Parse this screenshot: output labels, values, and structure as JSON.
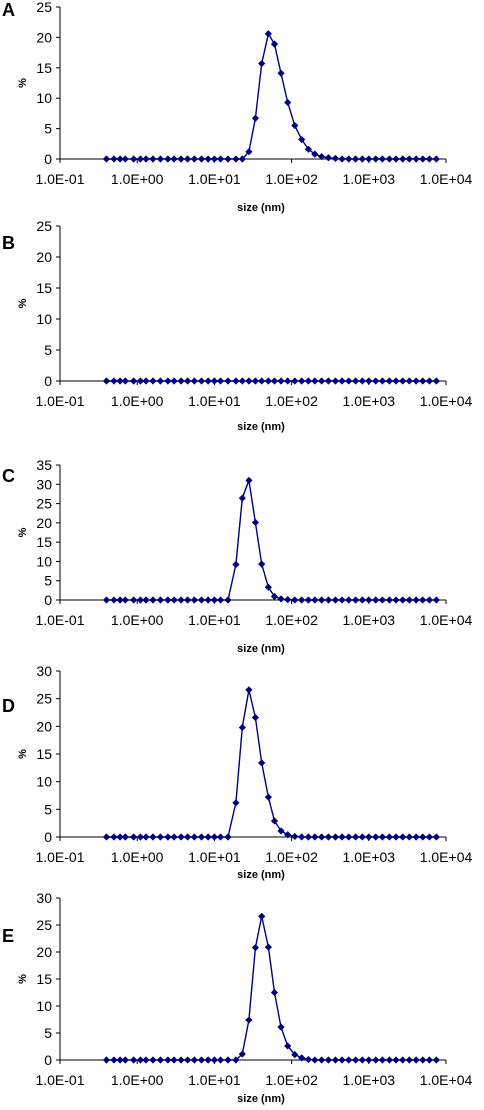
{
  "chart_data": [
    {
      "type": "scatter",
      "panel_label": "A",
      "xlabel": "size (nm)",
      "ylabel": "%",
      "x_scale": "log",
      "xlim": [
        0.1,
        10000
      ],
      "ylim": [
        0,
        25
      ],
      "x_ticks": [
        "1.0E-01",
        "1.0E+00",
        "1.0E+01",
        "1.0E+02",
        "1.0E+03",
        "1.0E+04"
      ],
      "y_ticks": [
        "0",
        "5",
        "10",
        "15",
        "20",
        "25"
      ],
      "grid": false,
      "marker": "diamond",
      "color": "#00007f",
      "series": [
        {
          "x": [
            0.4,
            0.5,
            0.6,
            0.7,
            0.9,
            1.1,
            1.3,
            1.6,
            2,
            2.5,
            3,
            3.7,
            4.5,
            5.5,
            6.8,
            8.3,
            10,
            12,
            15,
            19,
            23,
            28,
            34,
            41,
            50,
            60,
            73,
            89,
            110,
            135,
            165,
            200,
            245,
            300,
            370,
            450,
            550,
            675,
            825,
            1000,
            1230,
            1500,
            1850,
            2250,
            2750,
            3350,
            4100,
            5000,
            6100,
            7500
          ],
          "y": [
            0,
            0,
            0,
            0,
            0,
            0,
            0,
            0,
            0,
            0,
            0,
            0,
            0,
            0,
            0,
            0,
            0,
            0,
            0,
            0,
            0,
            1.2,
            6.7,
            15.7,
            20.6,
            18.9,
            14.1,
            9.3,
            5.5,
            3.2,
            1.6,
            0.8,
            0.4,
            0.2,
            0.1,
            0,
            0,
            0,
            0,
            0,
            0,
            0,
            0,
            0,
            0,
            0,
            0,
            0,
            0,
            0
          ]
        }
      ]
    },
    {
      "type": "scatter",
      "panel_label": "B",
      "xlabel": "size (nm)",
      "ylabel": "%",
      "x_scale": "log",
      "xlim": [
        0.1,
        10000
      ],
      "ylim": [
        0,
        25
      ],
      "x_ticks": [
        "1.0E-01",
        "1.0E+00",
        "1.0E+01",
        "1.0E+02",
        "1.0E+03",
        "1.0E+04"
      ],
      "y_ticks": [
        "0",
        "5",
        "10",
        "15",
        "20",
        "25"
      ],
      "grid": false,
      "marker": "diamond",
      "color": "#00007f",
      "series": [
        {
          "x": [
            0.4,
            0.5,
            0.6,
            0.7,
            0.9,
            1.1,
            1.3,
            1.6,
            2,
            2.5,
            3,
            3.7,
            4.5,
            5.5,
            6.8,
            8.3,
            10,
            12,
            15,
            19,
            23,
            28,
            34,
            41,
            50,
            60,
            73,
            89,
            110,
            135,
            165,
            200,
            245,
            300,
            370,
            450,
            550,
            675,
            825,
            1000,
            1230,
            1500,
            1850,
            2250,
            2750,
            3350,
            4100,
            5000,
            6100,
            7500
          ],
          "y": [
            0,
            0,
            0,
            0,
            0,
            0,
            0,
            0,
            0,
            0,
            0,
            0,
            0,
            0,
            0,
            0,
            0,
            0,
            0,
            0,
            0,
            0,
            0,
            0,
            0,
            0,
            0,
            0,
            0,
            0,
            0,
            0,
            0,
            0,
            0,
            0,
            0,
            0,
            0,
            0,
            0,
            0,
            0,
            0,
            0,
            0,
            0,
            0,
            0,
            0
          ]
        }
      ]
    },
    {
      "type": "scatter",
      "panel_label": "C",
      "xlabel": "size (nm)",
      "ylabel": "%",
      "x_scale": "log",
      "xlim": [
        0.1,
        10000
      ],
      "ylim": [
        0,
        35
      ],
      "x_ticks": [
        "1.0E-01",
        "1.0E+00",
        "1.0E+01",
        "1.0E+02",
        "1.0E+03",
        "1.0E+04"
      ],
      "y_ticks": [
        "0",
        "5",
        "10",
        "15",
        "20",
        "25",
        "30",
        "35"
      ],
      "grid": false,
      "marker": "diamond",
      "color": "#00007f",
      "series": [
        {
          "x": [
            0.4,
            0.5,
            0.6,
            0.7,
            0.9,
            1.1,
            1.3,
            1.6,
            2,
            2.5,
            3,
            3.7,
            4.5,
            5.5,
            6.8,
            8.3,
            10,
            12,
            15,
            19,
            23,
            28,
            34,
            41,
            50,
            60,
            73,
            89,
            110,
            135,
            165,
            200,
            245,
            300,
            370,
            450,
            550,
            675,
            825,
            1000,
            1230,
            1500,
            1850,
            2250,
            2750,
            3350,
            4100,
            5000,
            6100,
            7500
          ],
          "y": [
            0,
            0,
            0,
            0,
            0,
            0,
            0,
            0,
            0,
            0,
            0,
            0,
            0,
            0,
            0,
            0,
            0,
            0,
            0,
            9.2,
            26.4,
            31.0,
            20.1,
            9.3,
            3.3,
            0.9,
            0.3,
            0.1,
            0,
            0,
            0,
            0,
            0,
            0,
            0,
            0,
            0,
            0,
            0,
            0,
            0,
            0,
            0,
            0,
            0,
            0,
            0,
            0,
            0,
            0
          ]
        }
      ]
    },
    {
      "type": "scatter",
      "panel_label": "D",
      "xlabel": "size (nm)",
      "ylabel": "%",
      "x_scale": "log",
      "xlim": [
        0.1,
        10000
      ],
      "ylim": [
        0,
        30
      ],
      "x_ticks": [
        "1.0E-01",
        "1.0E+00",
        "1.0E+01",
        "1.0E+02",
        "1.0E+03",
        "1.0E+04"
      ],
      "y_ticks": [
        "0",
        "5",
        "10",
        "15",
        "20",
        "25",
        "30"
      ],
      "grid": false,
      "marker": "diamond",
      "color": "#00007f",
      "series": [
        {
          "x": [
            0.4,
            0.5,
            0.6,
            0.7,
            0.9,
            1.1,
            1.3,
            1.6,
            2,
            2.5,
            3,
            3.7,
            4.5,
            5.5,
            6.8,
            8.3,
            10,
            12,
            15,
            19,
            23,
            28,
            34,
            41,
            50,
            60,
            73,
            89,
            110,
            135,
            165,
            200,
            245,
            300,
            370,
            450,
            550,
            675,
            825,
            1000,
            1230,
            1500,
            1850,
            2250,
            2750,
            3350,
            4100,
            5000,
            6100,
            7500
          ],
          "y": [
            0,
            0,
            0,
            0,
            0,
            0,
            0,
            0,
            0,
            0,
            0,
            0,
            0,
            0,
            0,
            0,
            0,
            0,
            0,
            6.2,
            19.8,
            26.6,
            21.6,
            13.4,
            7.2,
            2.9,
            1.1,
            0.4,
            0.1,
            0,
            0,
            0,
            0,
            0,
            0,
            0,
            0,
            0,
            0,
            0,
            0,
            0,
            0,
            0,
            0,
            0,
            0,
            0,
            0,
            0
          ]
        }
      ]
    },
    {
      "type": "scatter",
      "panel_label": "E",
      "xlabel": "size (nm)",
      "ylabel": "%",
      "x_scale": "log",
      "xlim": [
        0.1,
        10000
      ],
      "ylim": [
        0,
        30
      ],
      "x_ticks": [
        "1.0E-01",
        "1.0E+00",
        "1.0E+01",
        "1.0E+02",
        "1.0E+03",
        "1.0E+04"
      ],
      "y_ticks": [
        "0",
        "5",
        "10",
        "15",
        "20",
        "25",
        "30"
      ],
      "grid": false,
      "marker": "diamond",
      "color": "#00007f",
      "series": [
        {
          "x": [
            0.4,
            0.5,
            0.6,
            0.7,
            0.9,
            1.1,
            1.3,
            1.6,
            2,
            2.5,
            3,
            3.7,
            4.5,
            5.5,
            6.8,
            8.3,
            10,
            12,
            15,
            19,
            23,
            28,
            34,
            41,
            50,
            60,
            73,
            89,
            110,
            135,
            165,
            200,
            245,
            300,
            370,
            450,
            550,
            675,
            825,
            1000,
            1230,
            1500,
            1850,
            2250,
            2750,
            3350,
            4100,
            5000,
            6100,
            7500
          ],
          "y": [
            0,
            0,
            0,
            0,
            0,
            0,
            0,
            0,
            0,
            0,
            0,
            0,
            0,
            0,
            0,
            0,
            0,
            0,
            0,
            0,
            1.1,
            7.4,
            20.8,
            26.6,
            20.9,
            12.5,
            6.1,
            2.6,
            1.0,
            0.4,
            0.1,
            0,
            0,
            0,
            0,
            0,
            0,
            0,
            0,
            0,
            0,
            0,
            0,
            0,
            0,
            0,
            0,
            0,
            0,
            0
          ]
        }
      ]
    }
  ]
}
